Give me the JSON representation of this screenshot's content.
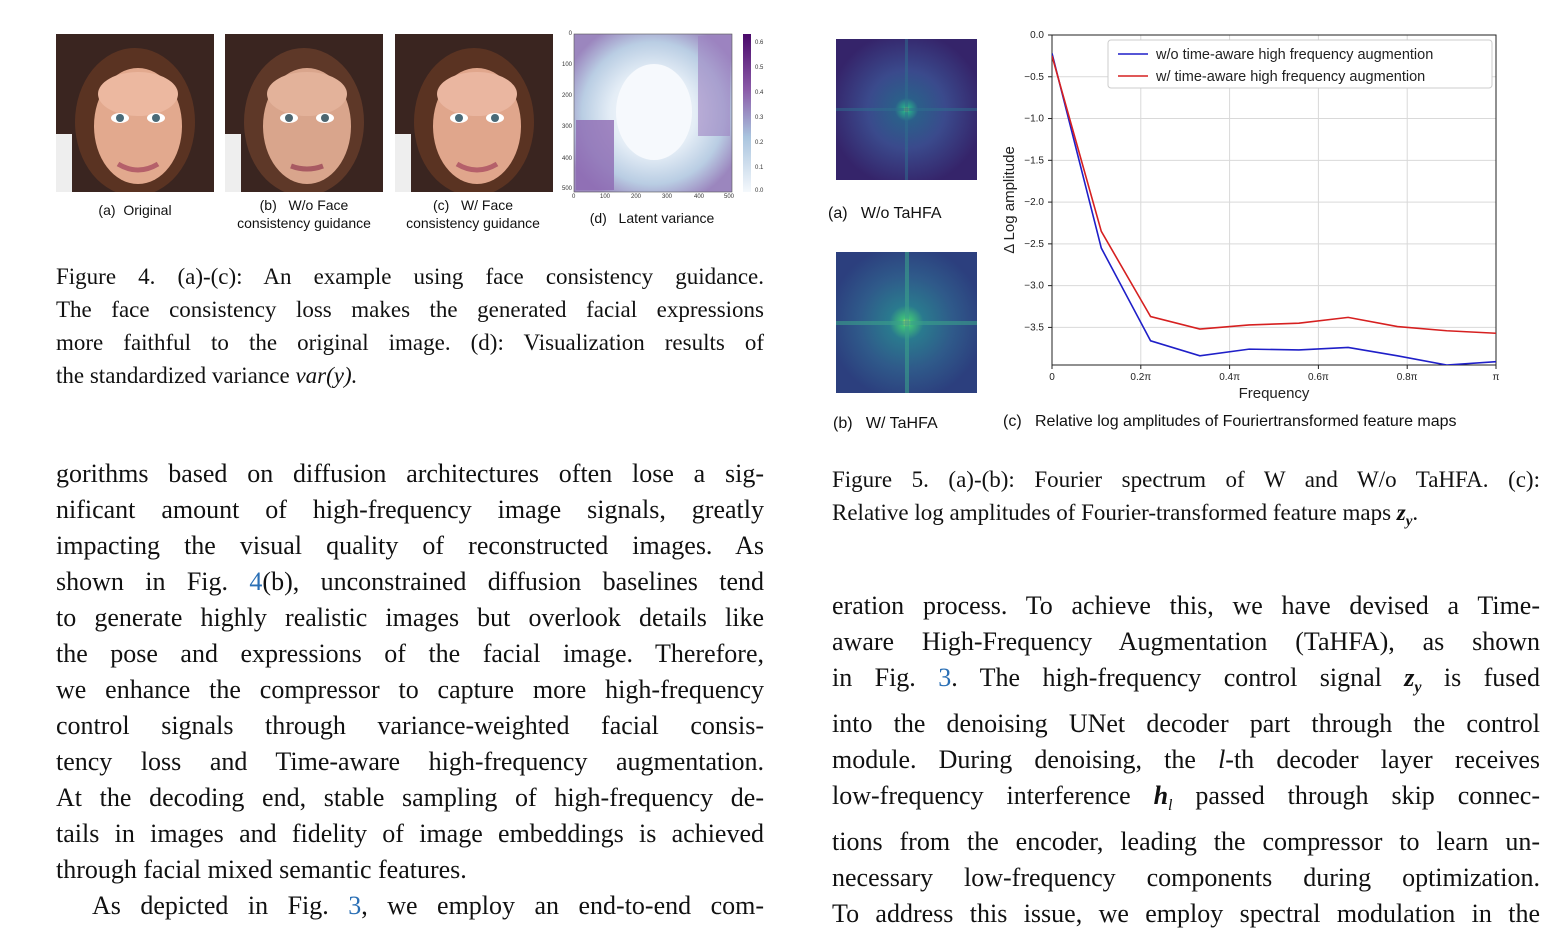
{
  "figure4": {
    "panels": [
      {
        "label": "(a)",
        "text": "Original"
      },
      {
        "label": "(b)",
        "text": "W/o Face",
        "text2": "consistency guidance"
      },
      {
        "label": "(c)",
        "text": "W/ Face",
        "text2": "consistency guidance"
      },
      {
        "label": "(d)",
        "text": "Latent variance"
      }
    ],
    "heatmap_y_ticks": [
      "0",
      "100",
      "200",
      "300",
      "400",
      "500"
    ],
    "heatmap_x_ticks": [
      "0",
      "100",
      "200",
      "300",
      "400",
      "500"
    ],
    "colorbar_ticks": [
      "0.6",
      "0.5",
      "0.4",
      "0.3",
      "0.2",
      "0.1",
      "0.0"
    ],
    "caption_lines": [
      "Figure 4.  (a)-(c):  An example using face consistency guidance.",
      "The face consistency loss makes the generated facial expressions",
      "more faithful to the original image.  (d): Visualization results of",
      "the standardized variance "
    ],
    "caption_math": "var(y)."
  },
  "figure5": {
    "panel_a": {
      "label": "(a)",
      "text": "W/o  TaHFA"
    },
    "panel_b": {
      "label": "(b)",
      "text": "W/  TaHFA"
    },
    "panel_c": {
      "label": "(c)",
      "text": "Relative log amplitudes of Fouriertransformed feature maps"
    },
    "caption_line1": "Figure 5.  (a)-(b):  Fourier spectrum of W and W/o TaHFA.  (c):",
    "caption_line2": "Relative log amplitudes of Fourier-transformed feature maps ",
    "caption_math": "z",
    "caption_sub": "y",
    "caption_end": "."
  },
  "chart_data": {
    "type": "line",
    "xlabel": "Frequency",
    "ylabel": "Δ Log amplitude",
    "xlim": [
      0,
      1
    ],
    "ylim": [
      -3.95,
      0.0
    ],
    "x_ticks": [
      "0",
      "0.2π",
      "0.4π",
      "0.6π",
      "0.8π",
      "π"
    ],
    "y_ticks": [
      "0.0",
      "−0.5",
      "−1.0",
      "−1.5",
      "−2.0",
      "−2.5",
      "−3.0",
      "−3.5"
    ],
    "grid": true,
    "legend_position": "top-right",
    "x": [
      0.0,
      0.111,
      0.222,
      0.333,
      0.444,
      0.556,
      0.667,
      0.778,
      0.889,
      1.0
    ],
    "series": [
      {
        "name": "w/o time-aware high frequency augmention",
        "color": "#1f1fc8",
        "values": [
          -0.22,
          -2.55,
          -3.66,
          -3.84,
          -3.76,
          -3.77,
          -3.74,
          -3.84,
          -3.95,
          -3.91
        ]
      },
      {
        "name": "w/ time-aware high frequency augmention",
        "color": "#d62020",
        "values": [
          -0.25,
          -2.35,
          -3.37,
          -3.52,
          -3.47,
          -3.45,
          -3.38,
          -3.49,
          -3.54,
          -3.57
        ]
      }
    ]
  },
  "left_body": [
    "gorithms based on diffusion architectures often lose a sig-",
    "nificant amount of high-frequency image signals, greatly",
    "impacting the visual quality of reconstructed images.  As",
    "shown in Fig. ",
    "(b), unconstrained diffusion baselines tend",
    "to generate highly realistic images but overlook details like",
    "the pose and expressions of the facial image.  Therefore,",
    "we enhance the compressor to capture more high-frequency",
    "control signals through variance-weighted facial consis-",
    "tency loss and Time-aware high-frequency augmentation.",
    "At the decoding end, stable sampling of high-frequency de-",
    "tails in images and fidelity of image embeddings is achieved",
    "through facial mixed semantic features.",
    "As depicted in Fig. ",
    ", we employ an end-to-end com-"
  ],
  "left_refs": {
    "fig4": "4",
    "fig3": "3"
  },
  "right_body": [
    "eration process.  To achieve this, we have devised a Time-",
    "aware High-Frequency Augmentation (TaHFA), as shown",
    "in Fig. ",
    ".  The high-frequency control signal ",
    " is fused",
    "into the denoising UNet decoder part through the control",
    "module.  During denoising, the ",
    "-th decoder layer receives",
    "low-frequency interference ",
    " passed through skip connec-",
    "tions from the encoder, leading the compressor to learn un-",
    "necessary low-frequency components during optimization.",
    "To address this issue, we employ spectral modulation in the"
  ],
  "right_math": {
    "fig3": "3",
    "z": "z",
    "zsub": "y",
    "l": "l",
    "h": "h",
    "hsub": "l"
  }
}
